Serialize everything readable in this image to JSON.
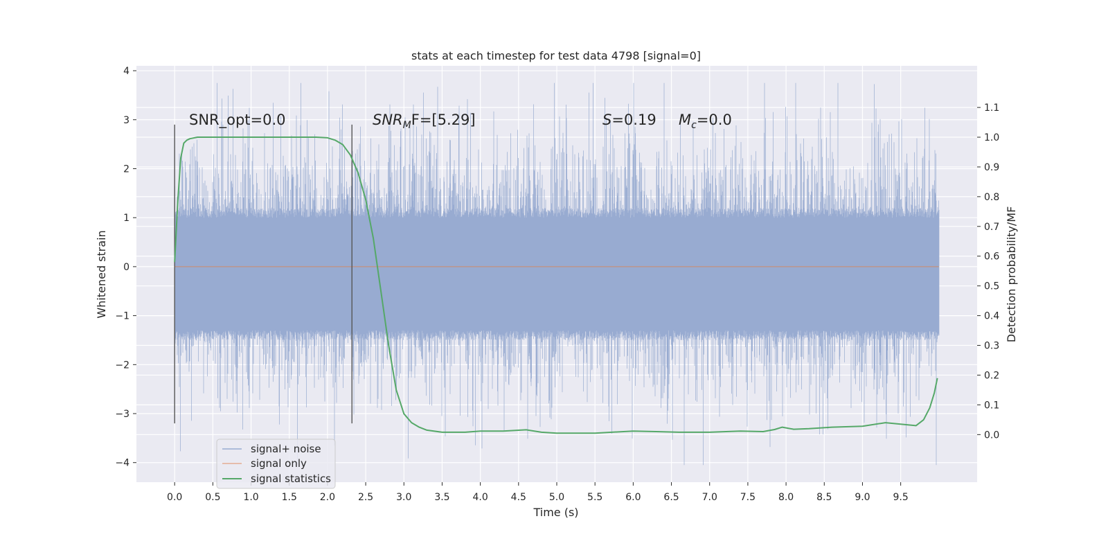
{
  "chart_data": {
    "type": "line",
    "title": "stats at each timestep for test data 4798 [signal=0]",
    "xlabel": "Time (s)",
    "ylabel": "Whitened strain",
    "y2label": "Detection probability/MF",
    "xlim": [
      -0.5,
      10.5
    ],
    "ylim": [
      -4.4,
      4.1
    ],
    "y2lim": [
      -0.16,
      1.24
    ],
    "x_ticks": [
      0.0,
      0.5,
      1.0,
      1.5,
      2.0,
      2.5,
      3.0,
      3.5,
      4.0,
      4.5,
      5.0,
      5.5,
      6.0,
      6.5,
      7.0,
      7.5,
      8.0,
      8.5,
      9.0,
      9.5
    ],
    "x_tick_labels": [
      "0.0",
      "0.5",
      "1.0",
      "1.5",
      "2.0",
      "2.5",
      "3.0",
      "3.5",
      "4.0",
      "4.5",
      "5.0",
      "5.5",
      "6.0",
      "6.5",
      "7.0",
      "7.5",
      "8.0",
      "8.5",
      "9.0",
      "9.5"
    ],
    "y_ticks": [
      -4,
      -3,
      -2,
      -1,
      0,
      1,
      2,
      3,
      4
    ],
    "y_tick_labels": [
      "−4",
      "−3",
      "−2",
      "−1",
      "0",
      "1",
      "2",
      "3",
      "4"
    ],
    "y2_ticks": [
      0.0,
      0.1,
      0.2,
      0.3,
      0.4,
      0.5,
      0.6,
      0.7,
      0.8,
      0.9,
      1.0,
      1.1
    ],
    "y2_tick_labels": [
      "0.0",
      "0.1",
      "0.2",
      "0.3",
      "0.4",
      "0.5",
      "0.6",
      "0.7",
      "0.8",
      "0.9",
      "1.0",
      "1.1"
    ],
    "grid": true,
    "legend_position": "lower-left",
    "legend": [
      "signal+ noise",
      "signal only",
      "signal statistics"
    ],
    "annotations": {
      "snr_opt": "SNR_opt=0.0",
      "snr_mf_base": "SNR",
      "snr_mf_sub": "M",
      "snr_mf_tail": "F=[5.29]",
      "s_var": "S",
      "s_val": "=0.19",
      "mc_var": "M",
      "mc_sub": "c",
      "mc_val": "=0.0"
    },
    "vertical_markers": [
      0.0,
      2.32
    ],
    "vertical_marker_range": [
      -3.2,
      2.9
    ],
    "series": [
      {
        "name": "signal+ noise",
        "color": "#98abd1",
        "x_range": [
          0.0,
          10.0
        ],
        "sample_rate_hz": 2048,
        "y_core_range": [
          -1.4,
          1.1
        ],
        "y_extremes": [
          -4.05,
          3.75
        ]
      },
      {
        "name": "signal only",
        "color": "#dd8452",
        "x_range": [
          0.0,
          10.0
        ],
        "y_constant": 0.0
      },
      {
        "name": "signal statistics",
        "axis": "right",
        "color": "#55a868",
        "x": [
          0.0,
          0.04,
          0.08,
          0.12,
          0.16,
          0.2,
          0.3,
          0.5,
          1.0,
          1.5,
          1.85,
          2.0,
          2.1,
          2.2,
          2.3,
          2.4,
          2.5,
          2.6,
          2.7,
          2.8,
          2.9,
          3.0,
          3.1,
          3.2,
          3.3,
          3.5,
          3.8,
          4.0,
          4.3,
          4.6,
          4.8,
          5.0,
          5.5,
          6.0,
          6.3,
          6.6,
          7.0,
          7.4,
          7.7,
          7.85,
          7.95,
          8.1,
          8.3,
          8.6,
          9.0,
          9.3,
          9.5,
          9.7,
          9.8,
          9.88,
          9.94,
          9.98
        ],
        "values": [
          0.58,
          0.78,
          0.93,
          0.98,
          0.99,
          0.995,
          1.0,
          1.0,
          1.0,
          1.0,
          1.0,
          0.998,
          0.99,
          0.975,
          0.94,
          0.88,
          0.79,
          0.66,
          0.48,
          0.3,
          0.15,
          0.07,
          0.04,
          0.025,
          0.015,
          0.008,
          0.008,
          0.012,
          0.012,
          0.016,
          0.008,
          0.005,
          0.005,
          0.012,
          0.01,
          0.008,
          0.008,
          0.012,
          0.01,
          0.017,
          0.025,
          0.018,
          0.02,
          0.025,
          0.028,
          0.04,
          0.035,
          0.03,
          0.05,
          0.09,
          0.14,
          0.19
        ]
      }
    ]
  }
}
